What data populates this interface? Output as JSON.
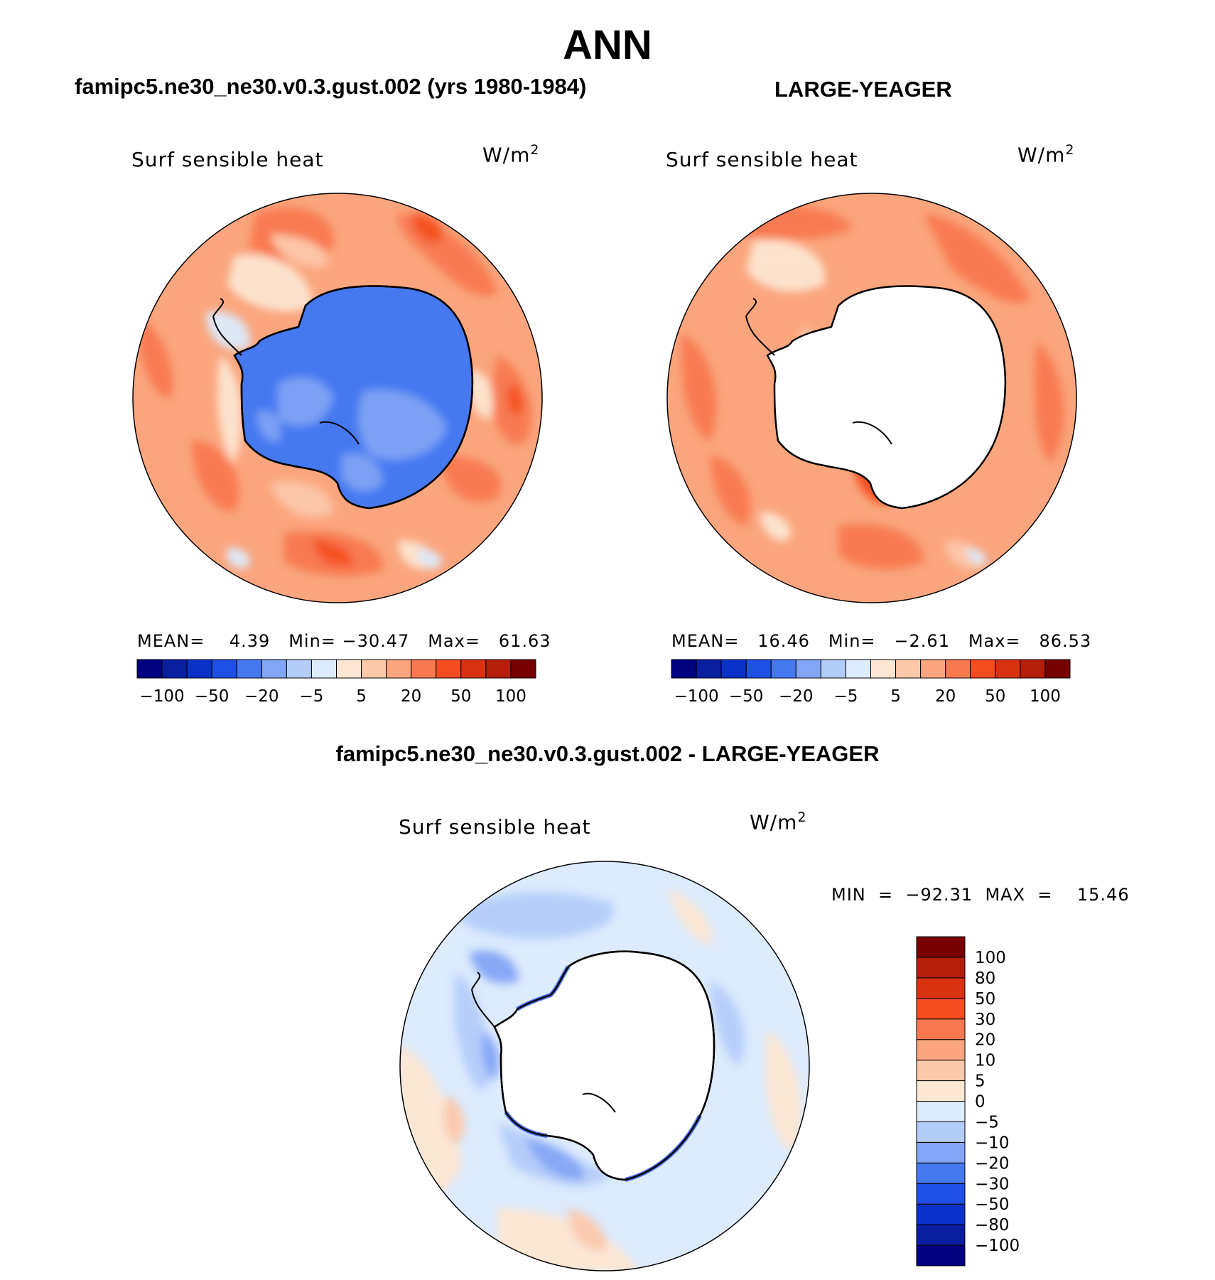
{
  "main_title": "ANN",
  "panels": {
    "left": {
      "title": "famipc5.ne30_ne30.v0.3.gust.002 (yrs 1980-1984)",
      "variable": "Surf sensible heat",
      "units_base": "W/m",
      "units_exp": "2",
      "stats": "MEAN=    4.39   Min= −30.47   Max=   61.63",
      "colorbar_ticks": [
        "−100",
        "−50",
        "−20",
        "−5",
        "5",
        "20",
        "50",
        "100"
      ]
    },
    "right": {
      "title": "LARGE-YEAGER",
      "variable": "Surf sensible heat",
      "units_base": "W/m",
      "units_exp": "2",
      "stats": "MEAN=   16.46   Min=   −2.61   Max=   86.53",
      "colorbar_ticks": [
        "−100",
        "−50",
        "−20",
        "−5",
        "5",
        "20",
        "50",
        "100"
      ]
    },
    "difference": {
      "title": "famipc5.ne30_ne30.v0.3.gust.002 - LARGE-YEAGER",
      "variable": "Surf sensible heat",
      "units_base": "W/m",
      "units_exp": "2",
      "stats": "MIN  =  −92.31  MAX  =    15.46",
      "colorbar_ticks": [
        "100",
        "80",
        "50",
        "30",
        "20",
        "10",
        "5",
        "0",
        "−5",
        "−10",
        "−20",
        "−30",
        "−50",
        "−80",
        "−100"
      ]
    }
  },
  "colors": {
    "model_scale": [
      "#000080",
      "#0a1ea0",
      "#0a32c8",
      "#1e50e6",
      "#4678f0",
      "#82a5f5",
      "#b4ccfa",
      "#dcebfd",
      "#fde6d2",
      "#fcc8aa",
      "#faa57d",
      "#f87850",
      "#f54d1f",
      "#d93210",
      "#b41e0a",
      "#780000"
    ],
    "diff_scale": [
      "#000080",
      "#0a1ea0",
      "#0a32c8",
      "#1e50e6",
      "#4678f0",
      "#82a5f5",
      "#b4ccfa",
      "#dcebfd",
      "#fde6d2",
      "#fcc8aa",
      "#faa57d",
      "#f87850",
      "#f54d1f",
      "#d93210",
      "#b41e0a",
      "#780000"
    ],
    "land_outline": "#000000",
    "ice_fill": "#ffffff"
  }
}
